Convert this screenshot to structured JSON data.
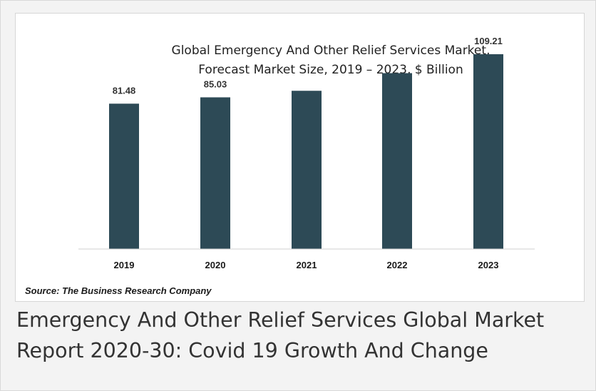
{
  "chart_data": {
    "type": "bar",
    "title_lines": [
      "Global Emergency And Other Relief Services Market,",
      "Forecast Market Size, 2019 – 2023, $ Billion"
    ],
    "categories": [
      "2019",
      "2020",
      "2021",
      "2022",
      "2023"
    ],
    "values": [
      81.48,
      85.03,
      88.7,
      98.6,
      109.21
    ],
    "data_labels": [
      "81.48",
      "85.03",
      "",
      "",
      "109.21"
    ],
    "ylim": [
      0,
      120
    ],
    "bar_color": "#2d4a56",
    "grid": false,
    "legend": "none",
    "xlabel": "",
    "ylabel": ""
  },
  "source_text": "Source: The Business Research Company",
  "caption": "Emergency And Other Relief Services Global Market Report 2020-30: Covid 19 Growth And Change"
}
